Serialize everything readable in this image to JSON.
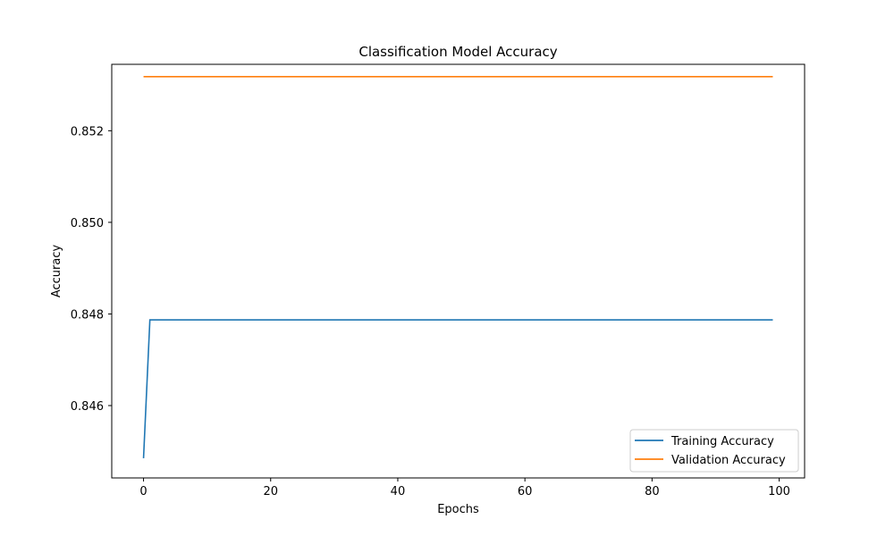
{
  "chart_data": {
    "type": "line",
    "title": "Classification Model Accuracy",
    "xlabel": "Epochs",
    "ylabel": "Accuracy",
    "xlim": [
      -5,
      104
    ],
    "ylim": [
      0.84442,
      0.85345
    ],
    "xticks": [
      0,
      20,
      40,
      60,
      80,
      100
    ],
    "yticks": [
      0.846,
      0.848,
      0.85,
      0.852
    ],
    "ytick_labels": [
      "0.846",
      "0.848",
      "0.850",
      "0.852"
    ],
    "xtick_labels": [
      "0",
      "20",
      "40",
      "60",
      "80",
      "100"
    ],
    "grid": false,
    "legend_position": "lower right",
    "series": [
      {
        "name": "Training Accuracy",
        "color": "#1f77b4",
        "points": [
          [
            0,
            0.84485
          ],
          [
            1,
            0.84787
          ],
          [
            99,
            0.84787
          ]
        ]
      },
      {
        "name": "Validation Accuracy",
        "color": "#ff7f0e",
        "points": [
          [
            0,
            0.85318
          ],
          [
            99,
            0.85318
          ]
        ]
      }
    ]
  }
}
